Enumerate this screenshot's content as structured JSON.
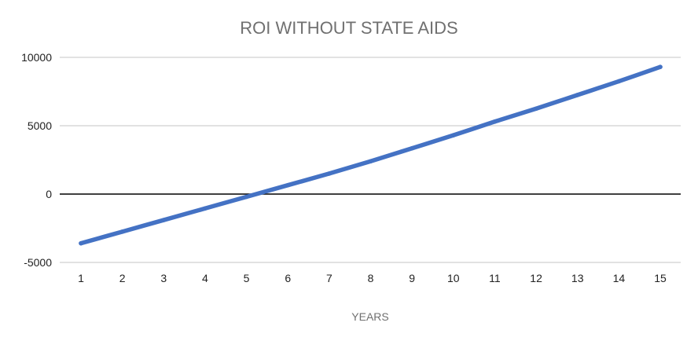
{
  "chart_data": {
    "type": "line",
    "title": "ROI WITHOUT STATE AIDS",
    "xlabel": "YEARS",
    "ylabel": "",
    "x": [
      1,
      2,
      3,
      4,
      5,
      6,
      7,
      8,
      9,
      10,
      11,
      12,
      13,
      14,
      15
    ],
    "series": [
      {
        "values": [
          -3600,
          -2750,
          -1900,
          -1050,
          -200,
          650,
          1500,
          2400,
          3350,
          4300,
          5300,
          6250,
          7250,
          8250,
          9300
        ]
      }
    ],
    "ylim": [
      -5000,
      10000
    ],
    "yticks": [
      10000,
      5000,
      0,
      -5000
    ],
    "grid": true,
    "legend": "none",
    "colors": {
      "line": "#4472C4",
      "grid": "#d0d0d0",
      "zero_line": "#000000"
    }
  }
}
